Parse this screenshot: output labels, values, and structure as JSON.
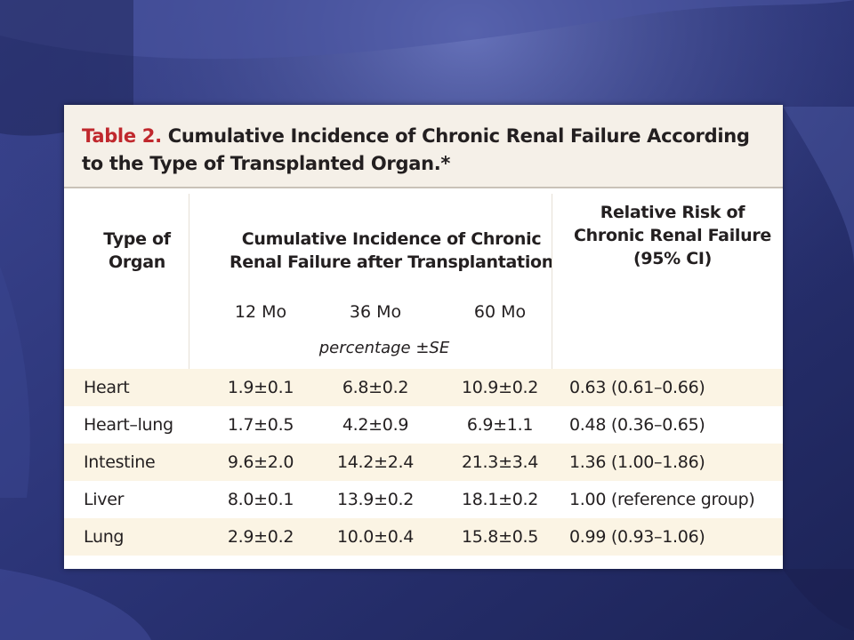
{
  "slide": {
    "table_title_prefix": "Table 2.",
    "table_title_text": "Cumulative Incidence of Chronic Renal Failure According to the Type of Transplanted Organ.*",
    "headers": {
      "organ": "Type of Organ",
      "incidence": "Cumulative Incidence of Chronic Renal Failure after Transplantation",
      "risk": "Relative Risk of Chronic Renal Failure (95% CI)"
    },
    "subheaders": [
      "12 Mo",
      "36 Mo",
      "60 Mo"
    ],
    "units": "percentage ±SE",
    "rows": [
      {
        "organ": "Heart",
        "m12": "1.9±0.1",
        "m36": "6.8±0.2",
        "m60": "10.9±0.2",
        "rr": "0.63 (0.61–0.66)"
      },
      {
        "organ": "Heart–lung",
        "m12": "1.7±0.5",
        "m36": "4.2±0.9",
        "m60": "6.9±1.1",
        "rr": "0.48 (0.36–0.65)"
      },
      {
        "organ": "Intestine",
        "m12": "9.6±2.0",
        "m36": "14.2±2.4",
        "m60": "21.3±3.4",
        "rr": "1.36 (1.00–1.86)"
      },
      {
        "organ": "Liver",
        "m12": "8.0±0.1",
        "m36": "13.9±0.2",
        "m60": "18.1±0.2",
        "rr": "1.00 (reference group)"
      },
      {
        "organ": "Lung",
        "m12": "2.9±0.2",
        "m36": "10.0±0.4",
        "m60": "15.8±0.5",
        "rr": "0.99 (0.93–1.06)"
      }
    ]
  },
  "colors": {
    "background_dark": "#1e2660",
    "background_light": "#5a66b0",
    "title_prefix": "#c0282d",
    "title_band": "#f5f0e8",
    "row_shade": "#fbf4e4",
    "text": "#231f20"
  }
}
